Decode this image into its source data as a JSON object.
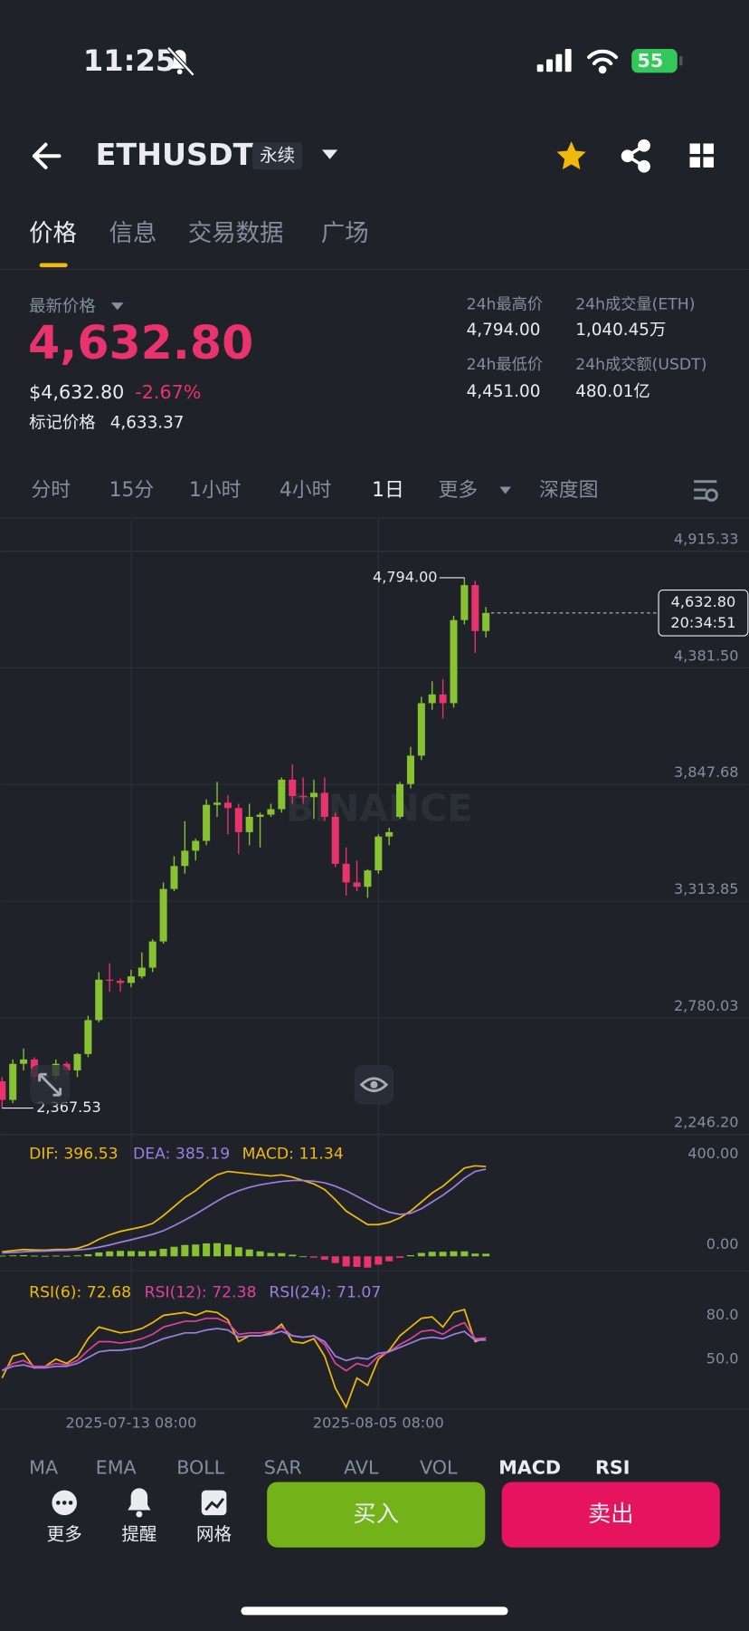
{
  "status_bar": {
    "time": "11:25",
    "battery": "55"
  },
  "header": {
    "symbol": "ETHUSDT",
    "contract": "永续"
  },
  "tabs": [
    "价格",
    "信息",
    "交易数据",
    "广场"
  ],
  "ticker": {
    "last_price_label": "最新价格",
    "last_price": "4,632.80",
    "usd_price": "$4,632.80",
    "change": "-2.67%",
    "mark_price_label": "标记价格",
    "mark_price": "4,633.37",
    "stats": [
      {
        "label": "24h最高价",
        "value": "4,794.00"
      },
      {
        "label": "24h成交量(ETH)",
        "value": "1,040.45万"
      },
      {
        "label": "24h最低价",
        "value": "4,451.00"
      },
      {
        "label": "24h成交额(USDT)",
        "value": "480.01亿"
      }
    ]
  },
  "intervals": [
    "分时",
    "15分",
    "1小时",
    "4小时",
    "1日",
    "更多",
    "深度图"
  ],
  "chart_data": [
    {
      "type": "candlestick",
      "watermark": "BINANCE",
      "up_color": "#86c232",
      "down_color": "#e8336d",
      "open": [
        2490,
        2405,
        2570,
        2590,
        2510,
        2515,
        2570,
        2540,
        2615,
        2770,
        2955,
        2950,
        2940,
        2970,
        3010,
        3130,
        3370,
        3475,
        3545,
        3590,
        3755,
        3765,
        3740,
        3630,
        3700,
        3710,
        3735,
        3870,
        3795,
        3790,
        3810,
        3700,
        3485,
        3400,
        3380,
        3455,
        3610,
        3700,
        3850,
        3980,
        4220,
        4260,
        4220,
        4600,
        4760,
        4550
      ],
      "high": [
        2510,
        2590,
        2640,
        2600,
        2530,
        2590,
        2580,
        2620,
        2790,
        2990,
        3030,
        2960,
        3000,
        3080,
        3140,
        3400,
        3520,
        3680,
        3600,
        3780,
        3860,
        3800,
        3760,
        3760,
        3720,
        3760,
        3880,
        3940,
        3880,
        3870,
        3880,
        3720,
        3560,
        3500,
        3460,
        3620,
        3650,
        3860,
        4020,
        4250,
        4320,
        4330,
        4620,
        4794.0,
        4780,
        4660
      ],
      "low": [
        2367.53,
        2390,
        2540,
        2490,
        2490,
        2500,
        2520,
        2510,
        2600,
        2760,
        2900,
        2900,
        2920,
        2960,
        2990,
        3120,
        3360,
        3440,
        3500,
        3570,
        3700,
        3620,
        3530,
        3570,
        3560,
        3700,
        3720,
        3760,
        3760,
        3690,
        3680,
        3470,
        3340,
        3360,
        3330,
        3440,
        3570,
        3690,
        3830,
        3960,
        4190,
        4150,
        4200,
        4580,
        4450,
        4520
      ],
      "close": [
        2405,
        2570,
        2590,
        2510,
        2515,
        2570,
        2540,
        2615,
        2770,
        2955,
        2950,
        2940,
        2970,
        3010,
        3130,
        3370,
        3475,
        3545,
        3590,
        3755,
        3765,
        3740,
        3630,
        3700,
        3710,
        3735,
        3870,
        3795,
        3790,
        3810,
        3700,
        3485,
        3400,
        3380,
        3455,
        3610,
        3630,
        3850,
        3980,
        4220,
        4260,
        4220,
        4600,
        4760,
        4550,
        4632.8
      ],
      "ylim": [
        2246.2,
        5058.0
      ],
      "yticks": [
        {
          "value": 4915.33,
          "label": "4,915.33"
        },
        {
          "value": 4381.5,
          "label": "4,381.50"
        },
        {
          "value": 3847.68,
          "label": "3,847.68"
        },
        {
          "value": 3313.85,
          "label": "3,313.85"
        },
        {
          "value": 2780.03,
          "label": "2,780.03"
        },
        {
          "value": 2246.2,
          "label": "2,246.20"
        }
      ],
      "grid": true,
      "annotations": {
        "max_label": "4,794.00",
        "min_label": "2,367.53",
        "last_label": "4,632.80",
        "countdown": "20:34:51"
      }
    },
    {
      "type": "macd",
      "up_color": "#86c232",
      "down_color": "#e8336d",
      "series": [
        {
          "name": "DIF:",
          "color": "#f0b90b",
          "values": [
            20,
            25,
            30,
            28,
            27,
            30,
            30,
            35,
            50,
            75,
            95,
            110,
            120,
            130,
            145,
            180,
            220,
            260,
            290,
            330,
            360,
            375,
            370,
            365,
            360,
            355,
            360,
            350,
            335,
            320,
            295,
            250,
            200,
            170,
            140,
            140,
            150,
            170,
            200,
            240,
            280,
            310,
            350,
            390,
            400,
            396.53
          ]
        },
        {
          "name": "DEA:",
          "color": "#9b7fe0",
          "values": [
            15,
            17,
            20,
            22,
            23,
            25,
            26,
            28,
            32,
            40,
            50,
            62,
            73,
            85,
            97,
            113,
            135,
            160,
            186,
            215,
            244,
            270,
            290,
            305,
            316,
            324,
            331,
            335,
            335,
            332,
            325,
            310,
            290,
            265,
            240,
            215,
            195,
            185,
            190,
            210,
            240,
            270,
            305,
            345,
            375,
            385.19
          ]
        },
        {
          "name": "MACD:",
          "color": "#f0b90b",
          "values": [
            3,
            4,
            5,
            3,
            2,
            3,
            2,
            4,
            9,
            17,
            22,
            24,
            23,
            22,
            24,
            33,
            42,
            50,
            52,
            57,
            58,
            52,
            40,
            30,
            22,
            15,
            14,
            7,
            0,
            -6,
            -15,
            -30,
            -45,
            -47,
            -50,
            -37,
            -22,
            -7,
            5,
            15,
            20,
            20,
            22,
            22,
            12,
            11.34
          ]
        }
      ],
      "ylim": [
        -64.4,
        537.9
      ],
      "yticks": [
        {
          "value": 400,
          "label": "400.00"
        },
        {
          "value": 0,
          "label": "0.00"
        }
      ]
    },
    {
      "type": "rsi",
      "categories": [
        null,
        null,
        null,
        null,
        null,
        null,
        null,
        null,
        null,
        null,
        null,
        null,
        "2025-07-13 08:00",
        null,
        null,
        null,
        null,
        null,
        null,
        null,
        null,
        null,
        null,
        null,
        null,
        null,
        null,
        null,
        null,
        null,
        null,
        null,
        null,
        null,
        null,
        "2025-08-05 08:00",
        null,
        null,
        null,
        null,
        null,
        null,
        null,
        null,
        null,
        null
      ],
      "series": [
        {
          "name": "RSI(6):",
          "color": "#f0b90b",
          "values": [
            45,
            60,
            62,
            52,
            53,
            58,
            55,
            60,
            72,
            80,
            78,
            76,
            77,
            79,
            83,
            88,
            89,
            90,
            88,
            91,
            90,
            85,
            70,
            74,
            74,
            76,
            82,
            70,
            69,
            72,
            60,
            38,
            25,
            45,
            40,
            58,
            64,
            74,
            80,
            86,
            87,
            80,
            90,
            92,
            70,
            72.68
          ]
        },
        {
          "name": "RSI(12):",
          "color": "#e040a0",
          "values": [
            50,
            55,
            57,
            53,
            53,
            55,
            54,
            57,
            64,
            70,
            70,
            69,
            70,
            72,
            75,
            80,
            82,
            84,
            84,
            86,
            86,
            83,
            75,
            76,
            76,
            77,
            80,
            74,
            73,
            74,
            68,
            55,
            50,
            55,
            53,
            60,
            63,
            68,
            72,
            77,
            78,
            75,
            80,
            83,
            72,
            72.38
          ]
        },
        {
          "name": "RSI(24):",
          "color": "#9b7fe0",
          "values": [
            50,
            53,
            54,
            52,
            52,
            53,
            53,
            55,
            59,
            63,
            64,
            64,
            65,
            66,
            69,
            72,
            74,
            76,
            76,
            78,
            79,
            78,
            73,
            74,
            74,
            75,
            77,
            74,
            73,
            74,
            70,
            60,
            57,
            59,
            58,
            62,
            63,
            66,
            69,
            72,
            73,
            72,
            75,
            77,
            71,
            71.07
          ]
        }
      ],
      "ylim": [
        23.6,
        118.6
      ],
      "yticks": [
        {
          "value": 80,
          "label": "80.0"
        },
        {
          "value": 50,
          "label": "50.0"
        }
      ]
    }
  ],
  "indicator_tabs": [
    "MA",
    "EMA",
    "BOLL",
    "SAR",
    "AVL",
    "VOL",
    "MACD",
    "RSI"
  ],
  "bottom_bar": {
    "actions": [
      "更多",
      "提醒",
      "网格"
    ],
    "buy": "买入",
    "sell": "卖出"
  }
}
